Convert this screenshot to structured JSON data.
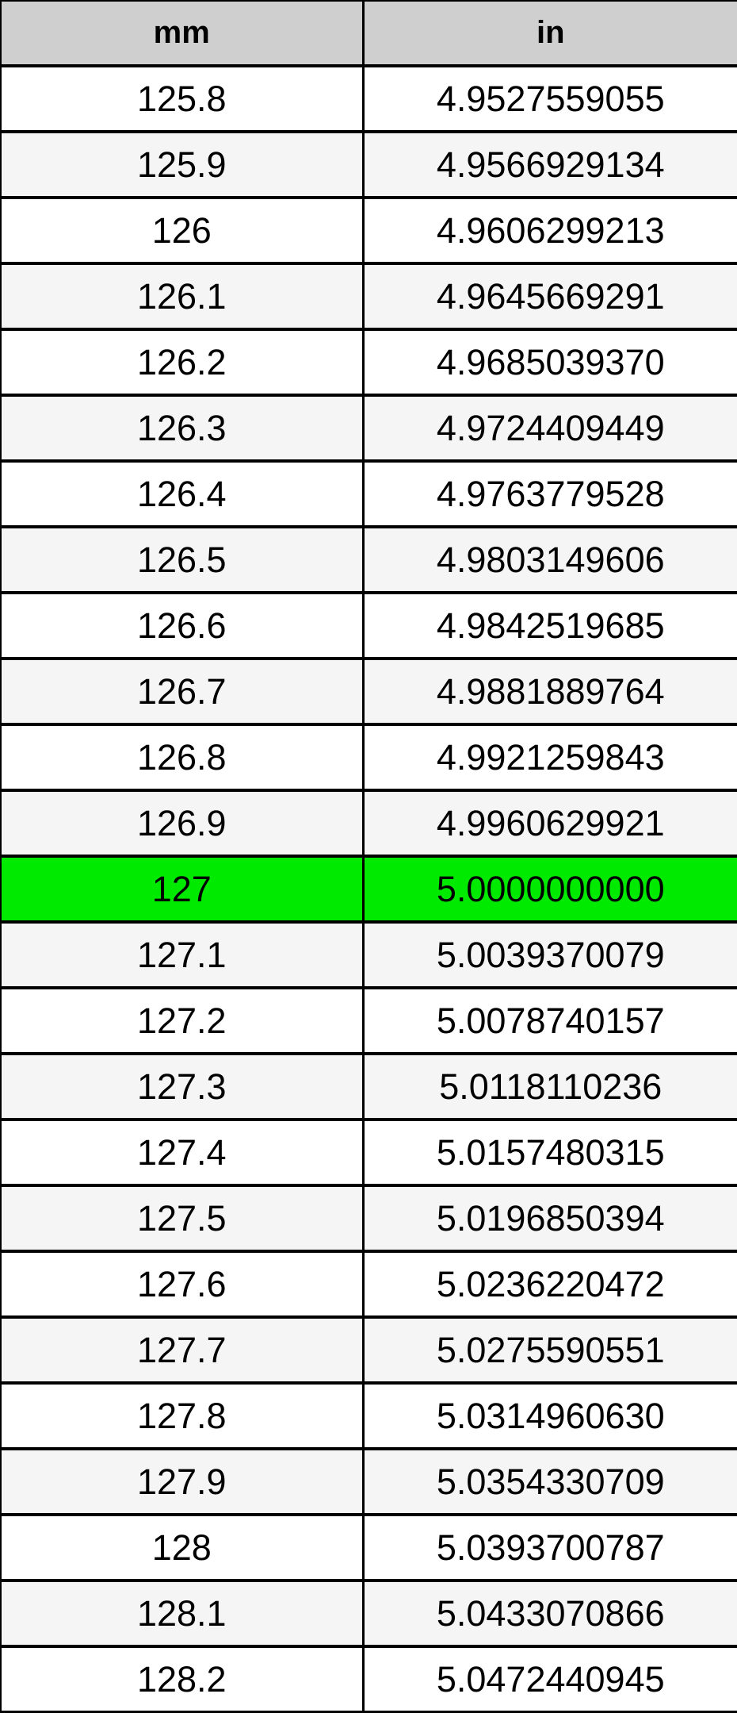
{
  "colors": {
    "header_bg": "#cfcfcf",
    "row_bg": "#ffffff",
    "stripe_bg": "#f5f5f5",
    "highlight_bg": "#00ea00",
    "border": "#000000",
    "text": "#000000"
  },
  "chart_data": {
    "type": "table",
    "title": "",
    "columns": [
      "mm",
      "in"
    ],
    "highlighted_row": "127",
    "rows": [
      [
        "125.8",
        "4.9527559055"
      ],
      [
        "125.9",
        "4.9566929134"
      ],
      [
        "126",
        "4.9606299213"
      ],
      [
        "126.1",
        "4.9645669291"
      ],
      [
        "126.2",
        "4.9685039370"
      ],
      [
        "126.3",
        "4.9724409449"
      ],
      [
        "126.4",
        "4.9763779528"
      ],
      [
        "126.5",
        "4.9803149606"
      ],
      [
        "126.6",
        "4.9842519685"
      ],
      [
        "126.7",
        "4.9881889764"
      ],
      [
        "126.8",
        "4.9921259843"
      ],
      [
        "126.9",
        "4.9960629921"
      ],
      [
        "127",
        "5.0000000000"
      ],
      [
        "127.1",
        "5.0039370079"
      ],
      [
        "127.2",
        "5.0078740157"
      ],
      [
        "127.3",
        "5.0118110236"
      ],
      [
        "127.4",
        "5.0157480315"
      ],
      [
        "127.5",
        "5.0196850394"
      ],
      [
        "127.6",
        "5.0236220472"
      ],
      [
        "127.7",
        "5.0275590551"
      ],
      [
        "127.8",
        "5.0314960630"
      ],
      [
        "127.9",
        "5.0354330709"
      ],
      [
        "128",
        "5.0393700787"
      ],
      [
        "128.1",
        "5.0433070866"
      ],
      [
        "128.2",
        "5.0472440945"
      ]
    ]
  }
}
